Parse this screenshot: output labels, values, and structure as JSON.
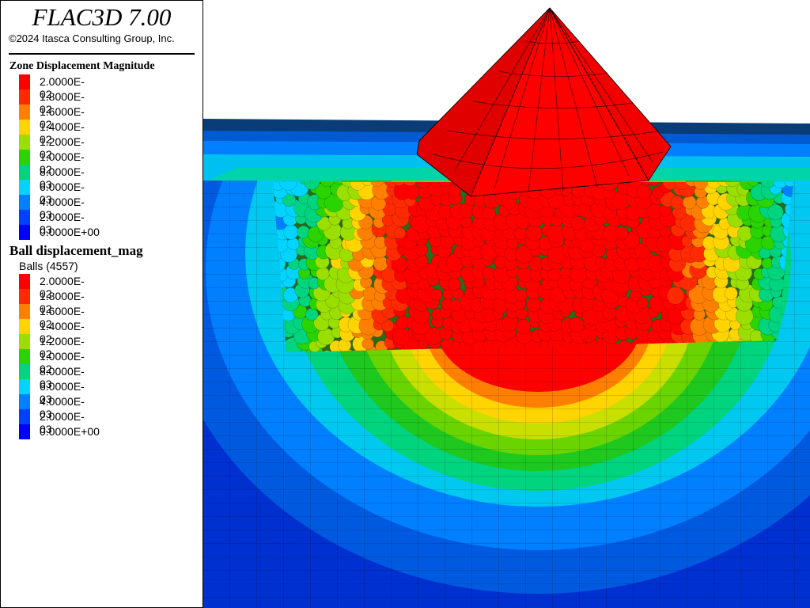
{
  "app": {
    "title": "FLAC3D 7.00",
    "copyright": "©2024 Itasca Consulting Group, Inc."
  },
  "zone_legend": {
    "title": "Zone Displacement Magnitude",
    "items": [
      {
        "label": "2.0000E-02",
        "color": "#ff0000"
      },
      {
        "label": "1.8000E-02",
        "color": "#ff2a00"
      },
      {
        "label": "1.6000E-02",
        "color": "#ff7f00"
      },
      {
        "label": "1.4000E-02",
        "color": "#ffd400"
      },
      {
        "label": "1.2000E-02",
        "color": "#9bdf00"
      },
      {
        "label": "1.0000E-02",
        "color": "#2ad400"
      },
      {
        "label": "8.0000E-03",
        "color": "#00d47f"
      },
      {
        "label": "6.0000E-03",
        "color": "#00d4ff"
      },
      {
        "label": "4.0000E-03",
        "color": "#007fff"
      },
      {
        "label": "2.0000E-03",
        "color": "#0040ff"
      },
      {
        "label": "0.0000E+00",
        "color": "#0000ff"
      }
    ]
  },
  "ball_legend": {
    "title": "Ball displacement_mag",
    "subtitle": "Balls (4557)",
    "items": [
      {
        "label": "2.0000E-02",
        "color": "#ff0000"
      },
      {
        "label": "1.8000E-02",
        "color": "#ff2a00"
      },
      {
        "label": "1.6000E-02",
        "color": "#ff7f00"
      },
      {
        "label": "1.4000E-02",
        "color": "#ffd400"
      },
      {
        "label": "1.2000E-02",
        "color": "#9bdf00"
      },
      {
        "label": "1.0000E-02",
        "color": "#2ad400"
      },
      {
        "label": "8.0000E-03",
        "color": "#00d47f"
      },
      {
        "label": "6.0000E-03",
        "color": "#00d4ff"
      },
      {
        "label": "4.0000E-03",
        "color": "#007fff"
      },
      {
        "label": "2.0000E-03",
        "color": "#0040ff"
      },
      {
        "label": "0.0000E+00",
        "color": "#0000ff"
      }
    ]
  }
}
